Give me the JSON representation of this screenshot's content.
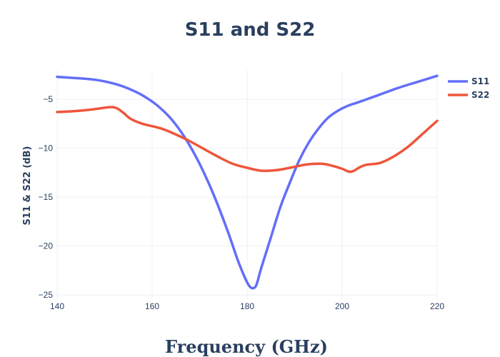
{
  "chart_data": {
    "type": "line",
    "title": "S11 and S22",
    "xlabel": "Frequency (GHz)",
    "ylabel": "S11 & S22 (dB)",
    "xlim": [
      140,
      220
    ],
    "ylim": [
      -25.5,
      -2
    ],
    "xticks": [
      140,
      160,
      180,
      200,
      220
    ],
    "yticks": [
      -5,
      -10,
      -15,
      -20,
      -25
    ],
    "xtick_labels": [
      "140",
      "160",
      "180",
      "200",
      "220"
    ],
    "ytick_labels": [
      "−5",
      "−10",
      "−15",
      "−20",
      "−25"
    ],
    "grid": true,
    "legend_position": "top-right",
    "series": [
      {
        "name": "S11",
        "color": "#636efa",
        "x": [
          140,
          143,
          148,
          152,
          155,
          158,
          161,
          164,
          167,
          170,
          173,
          176,
          178,
          179.5,
          180.5,
          181.3,
          182,
          183,
          185,
          187,
          189,
          191,
          193,
          195,
          197,
          199,
          201,
          204,
          208,
          212,
          216,
          220
        ],
        "y": [
          -2.7,
          -2.8,
          -3.0,
          -3.4,
          -3.9,
          -4.6,
          -5.6,
          -7.0,
          -9.0,
          -11.6,
          -14.8,
          -18.6,
          -21.4,
          -23.2,
          -24.1,
          -24.3,
          -23.9,
          -22.2,
          -19.1,
          -16.0,
          -13.5,
          -11.2,
          -9.4,
          -8.0,
          -6.9,
          -6.2,
          -5.7,
          -5.2,
          -4.5,
          -3.8,
          -3.2,
          -2.6
        ]
      },
      {
        "name": "S22",
        "color": "#ef553b",
        "x": [
          140,
          144,
          148,
          151,
          152.5,
          154,
          155.5,
          158,
          162,
          165,
          168,
          171,
          174,
          177,
          180,
          183,
          186,
          189,
          192,
          194,
          196,
          198,
          200,
          201.5,
          202.5,
          203.5,
          205,
          208,
          211,
          214,
          217,
          220
        ],
        "y": [
          -6.3,
          -6.2,
          -6.0,
          -5.8,
          -5.9,
          -6.4,
          -7.0,
          -7.5,
          -8.0,
          -8.6,
          -9.3,
          -10.1,
          -10.9,
          -11.6,
          -12.0,
          -12.3,
          -12.25,
          -12.0,
          -11.7,
          -11.6,
          -11.6,
          -11.8,
          -12.1,
          -12.4,
          -12.3,
          -12.0,
          -11.7,
          -11.5,
          -10.8,
          -9.8,
          -8.5,
          -7.2
        ]
      }
    ]
  }
}
